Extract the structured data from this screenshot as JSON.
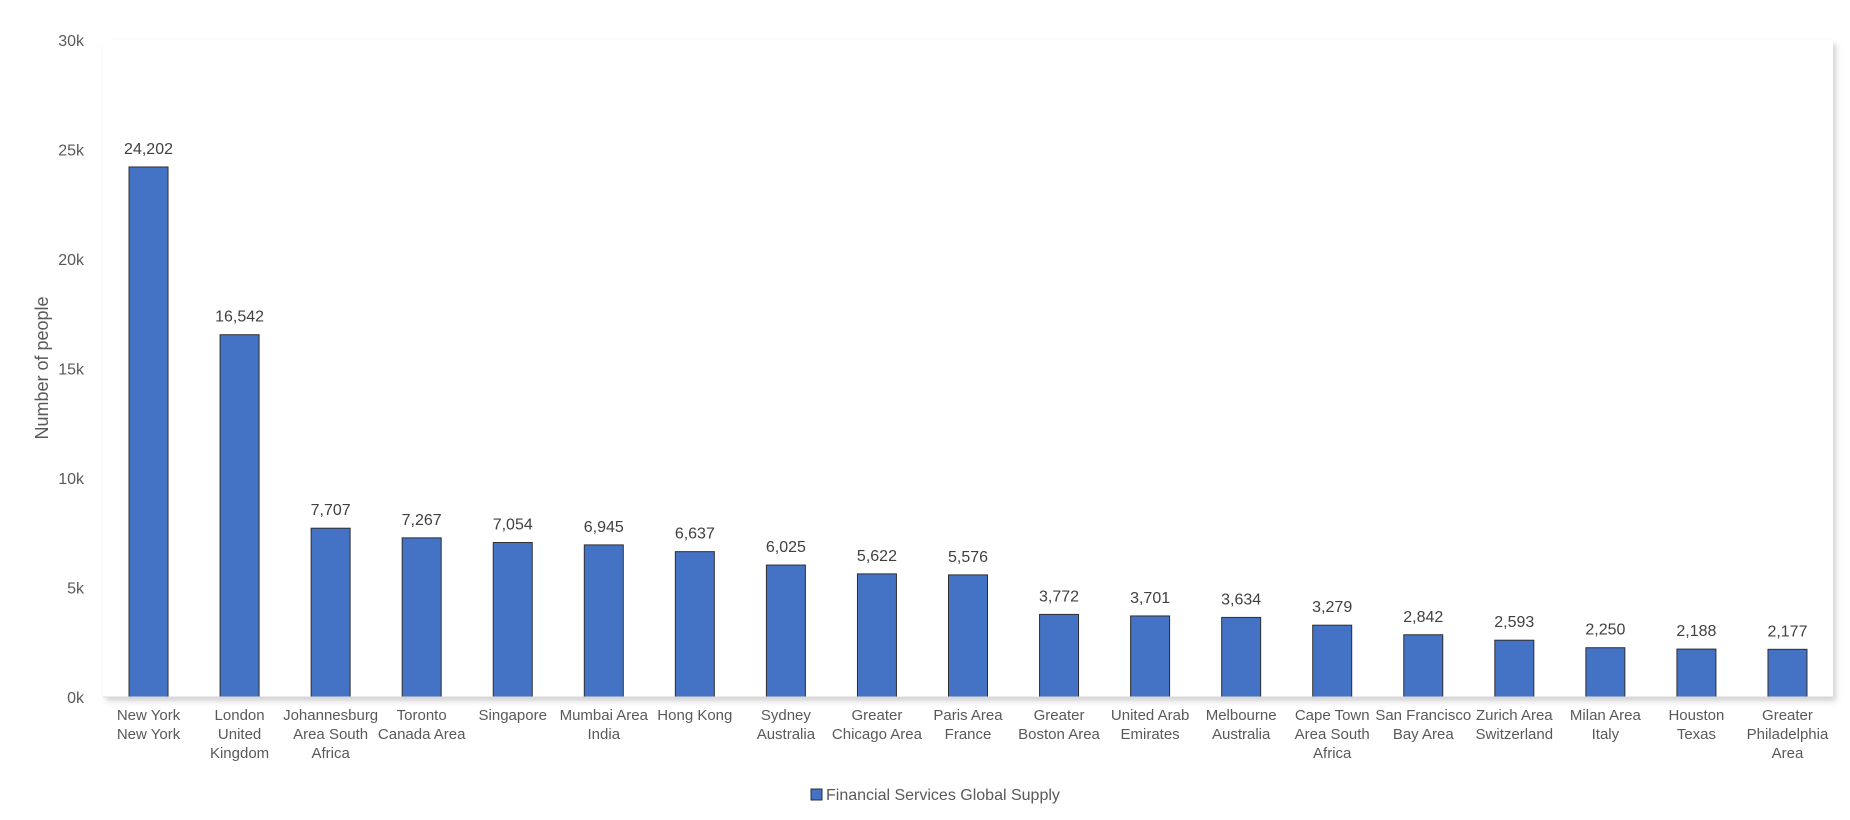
{
  "chart_data": {
    "type": "bar",
    "title": "",
    "ylabel": "Number of people",
    "xlabel": "",
    "ylim": [
      0,
      30000
    ],
    "yticks": [
      {
        "value": 0,
        "label": "0k"
      },
      {
        "value": 5000,
        "label": "5k"
      },
      {
        "value": 10000,
        "label": "10k"
      },
      {
        "value": 15000,
        "label": "15k"
      },
      {
        "value": 20000,
        "label": "20k"
      },
      {
        "value": 25000,
        "label": "25k"
      },
      {
        "value": 30000,
        "label": "30k"
      }
    ],
    "grid": false,
    "legend_position": "bottom",
    "categories": [
      [
        "New York",
        "New York"
      ],
      [
        "London",
        "United",
        "Kingdom"
      ],
      [
        "Johannesburg",
        "Area South",
        "Africa"
      ],
      [
        "Toronto",
        "Canada Area"
      ],
      [
        "Singapore"
      ],
      [
        "Mumbai Area",
        "India"
      ],
      [
        "Hong Kong"
      ],
      [
        "Sydney",
        "Australia"
      ],
      [
        "Greater",
        "Chicago Area"
      ],
      [
        "Paris Area",
        "France"
      ],
      [
        "Greater",
        "Boston Area"
      ],
      [
        "United Arab",
        "Emirates"
      ],
      [
        "Melbourne",
        "Australia"
      ],
      [
        "Cape Town",
        "Area South",
        "Africa"
      ],
      [
        "San Francisco",
        "Bay Area"
      ],
      [
        "Zurich Area",
        "Switzerland"
      ],
      [
        "Milan Area",
        "Italy"
      ],
      [
        "Houston",
        "Texas"
      ],
      [
        "Greater",
        "Philadelphia",
        "Area"
      ]
    ],
    "series": [
      {
        "name": "Financial Services Global Supply",
        "color": "#4472C4",
        "values": [
          24202,
          16542,
          7707,
          7267,
          7054,
          6945,
          6637,
          6025,
          5622,
          5576,
          3772,
          3701,
          3634,
          3279,
          2842,
          2593,
          2250,
          2188,
          2177
        ],
        "labels": [
          "24,202",
          "16,542",
          "7,707",
          "7,267",
          "7,054",
          "6,945",
          "6,637",
          "6,025",
          "5,622",
          "5,576",
          "3,772",
          "3,701",
          "3,634",
          "3,279",
          "2,842",
          "2,593",
          "2,250",
          "2,188",
          "2,177"
        ]
      }
    ]
  }
}
